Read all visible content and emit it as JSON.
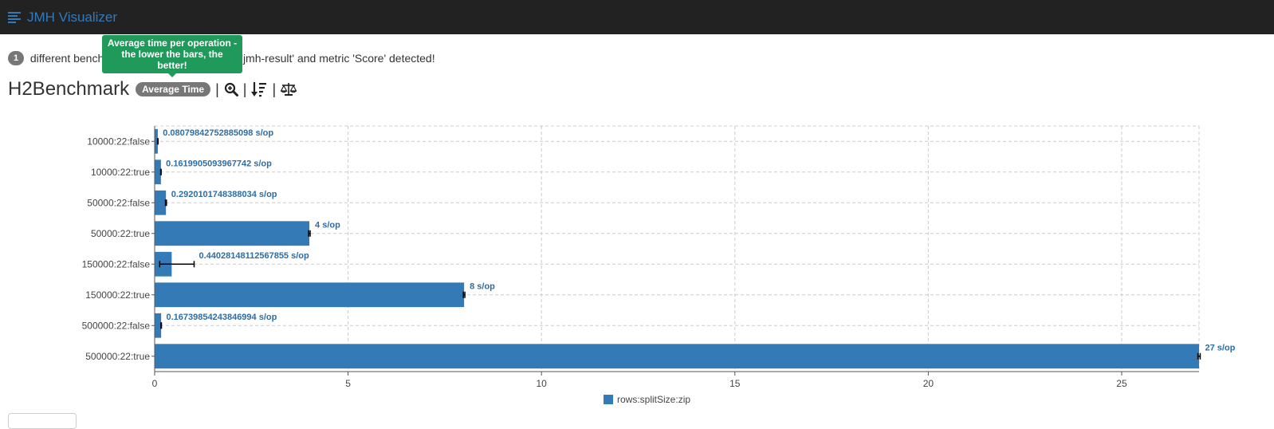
{
  "navbar": {
    "brand": "JMH Visualizer"
  },
  "summary": {
    "count": "1",
    "text_before": " different bench",
    "text_after": "'jmh-result' and metric 'Score' detected!"
  },
  "benchmark": {
    "title": "H2Benchmark",
    "mode_badge": "Average Time",
    "tooltip": "Average time per operation - the lower the bars, the better!"
  },
  "colors": {
    "bar": "#337ab7",
    "label": "#2e6da4",
    "tooltip": "#1f9a5a",
    "navbar": "#222222"
  },
  "icons": [
    "list-icon",
    "zoom-in-icon",
    "sort-icon",
    "balance-scale-icon"
  ],
  "chart_data": {
    "type": "bar",
    "orientation": "horizontal",
    "categories": [
      "10000:22:false",
      "10000:22:true",
      "50000:22:false",
      "50000:22:true",
      "150000:22:false",
      "150000:22:true",
      "500000:22:false",
      "500000:22:true"
    ],
    "series": [
      {
        "name": "rows:splitSize:zip",
        "values": [
          0.08079842752885098,
          0.1619905093967742,
          0.2920101748388034,
          4,
          0.44028148112567855,
          8,
          0.16739854243846994,
          27
        ],
        "error_low": [
          0.075,
          0.155,
          0.28,
          3.98,
          0.13,
          7.98,
          0.16,
          26.97
        ],
        "error_high": [
          0.087,
          0.168,
          0.305,
          4.02,
          1.02,
          8.02,
          0.175,
          27.03
        ],
        "labels": [
          "0.08079842752885098 s/op",
          "0.1619905093967742 s/op",
          "0.2920101748388034 s/op",
          "4 s/op",
          "0.44028148112567855 s/op",
          "8 s/op",
          "0.16739854243846994 s/op",
          "27 s/op"
        ]
      }
    ],
    "xticks": [
      "0",
      "5",
      "10",
      "15",
      "20",
      "25"
    ],
    "xlim": [
      0,
      27
    ],
    "grid": true,
    "legend": "bottom-center"
  }
}
